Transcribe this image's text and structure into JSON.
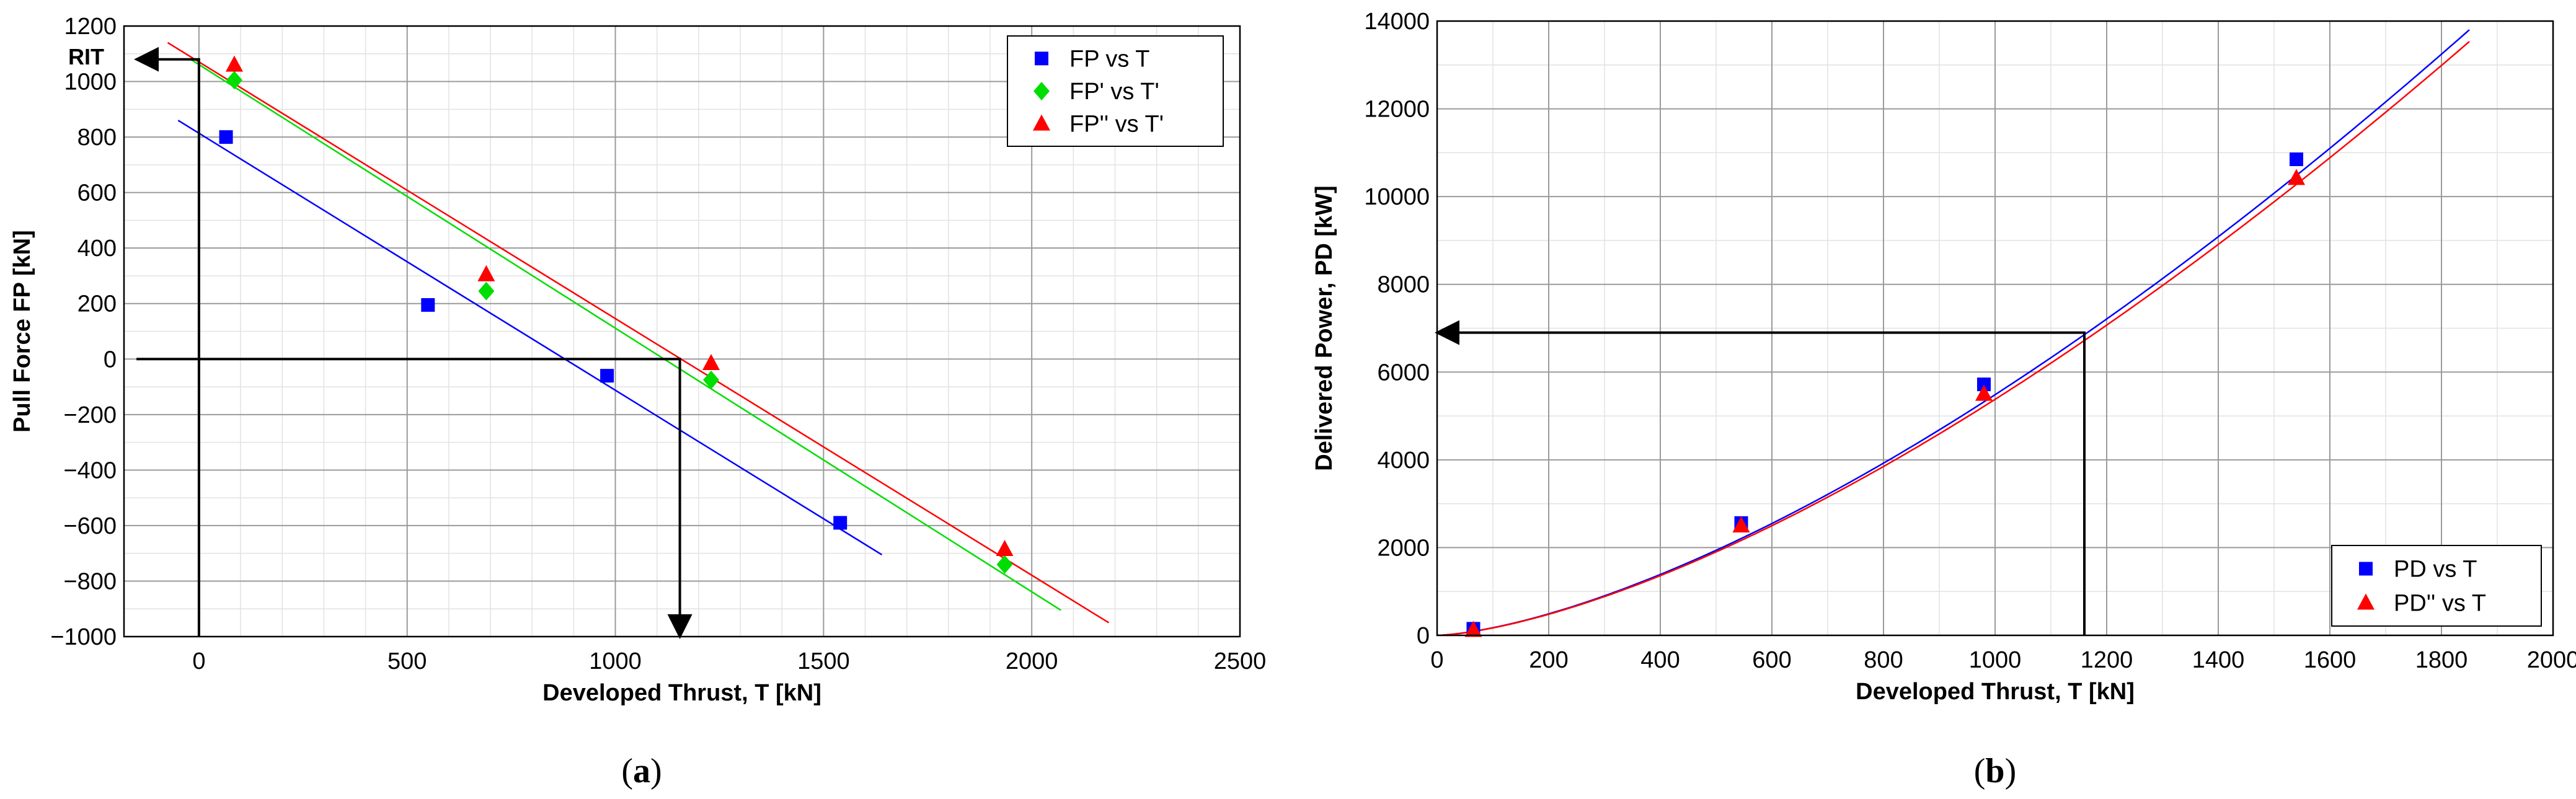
{
  "chart_data": [
    {
      "type": "scatter",
      "caption_letter": "a",
      "xlabel": "Developed Thrust, T [kN]",
      "ylabel": "Pull Force FP [kN]",
      "xlim": [
        -180,
        2500
      ],
      "ylim": [
        -1000,
        1200
      ],
      "xticks": [
        0,
        500,
        1000,
        1500,
        2000,
        2500
      ],
      "yticks": [
        1200,
        1000,
        800,
        600,
        400,
        200,
        0,
        -200,
        -400,
        -600,
        -800,
        -1000
      ],
      "grid": true,
      "legend_position": "top-right",
      "annotation": "RIT",
      "series": [
        {
          "name": "FP vs T",
          "marker": "square",
          "color": "#0000ff",
          "points": [
            [
              65,
              800
            ],
            [
              550,
              195
            ],
            [
              980,
              -60
            ],
            [
              1540,
              -590
            ]
          ],
          "fit": [
            [
              -50,
              860
            ],
            [
              1640,
              -705
            ]
          ]
        },
        {
          "name": "FP' vs T'",
          "marker": "diamond",
          "color": "#00dd00",
          "points": [
            [
              85,
              1005
            ],
            [
              690,
              245
            ],
            [
              1230,
              -75
            ],
            [
              1935,
              -740
            ]
          ],
          "fit": [
            [
              -20,
              1080
            ],
            [
              2070,
              -905
            ]
          ]
        },
        {
          "name": "FP'' vs T'",
          "marker": "triangle",
          "color": "#ff0000",
          "points": [
            [
              85,
              1060
            ],
            [
              690,
              305
            ],
            [
              1230,
              -15
            ],
            [
              1935,
              -685
            ]
          ],
          "fit": [
            [
              -75,
              1140
            ],
            [
              2185,
              -950
            ]
          ]
        }
      ],
      "arrows": [
        {
          "path": [
            [
              0,
              -1000
            ],
            [
              0,
              1080
            ],
            [
              -150,
              1080
            ]
          ]
        },
        {
          "path": [
            [
              -150,
              0
            ],
            [
              1155,
              0
            ],
            [
              1155,
              -1000
            ]
          ]
        }
      ]
    },
    {
      "type": "scatter",
      "caption_letter": "b",
      "xlabel": "Developed Thrust, T [kN]",
      "ylabel": "Delivered Power, PD [kW]",
      "xlim": [
        0,
        2000
      ],
      "ylim": [
        0,
        14000
      ],
      "xticks": [
        0,
        200,
        400,
        600,
        800,
        1000,
        1200,
        1400,
        1600,
        1800,
        2000
      ],
      "yticks": [
        14000,
        12000,
        10000,
        8000,
        6000,
        4000,
        2000,
        0
      ],
      "grid": true,
      "legend_position": "bottom-right",
      "series": [
        {
          "name": "PD vs T",
          "marker": "square",
          "color": "#0000ff",
          "points": [
            [
              65,
              150
            ],
            [
              545,
              2560
            ],
            [
              980,
              5720
            ],
            [
              1540,
              10850
            ]
          ],
          "fit_coef": 0.00465,
          "fit_exp": 1.5,
          "fit_xmax": 1850
        },
        {
          "name": "PD'' vs T",
          "marker": "triangle",
          "color": "#ff0000",
          "points": [
            [
              65,
              120
            ],
            [
              545,
              2500
            ],
            [
              980,
              5500
            ],
            [
              1540,
              10420
            ]
          ],
          "fit_coef": 0.00456,
          "fit_exp": 1.5,
          "fit_xmax": 1850
        }
      ],
      "arrows": [
        {
          "path": [
            [
              1160,
              0
            ],
            [
              1160,
              6900
            ],
            [
              0,
              6900
            ]
          ]
        }
      ]
    }
  ]
}
